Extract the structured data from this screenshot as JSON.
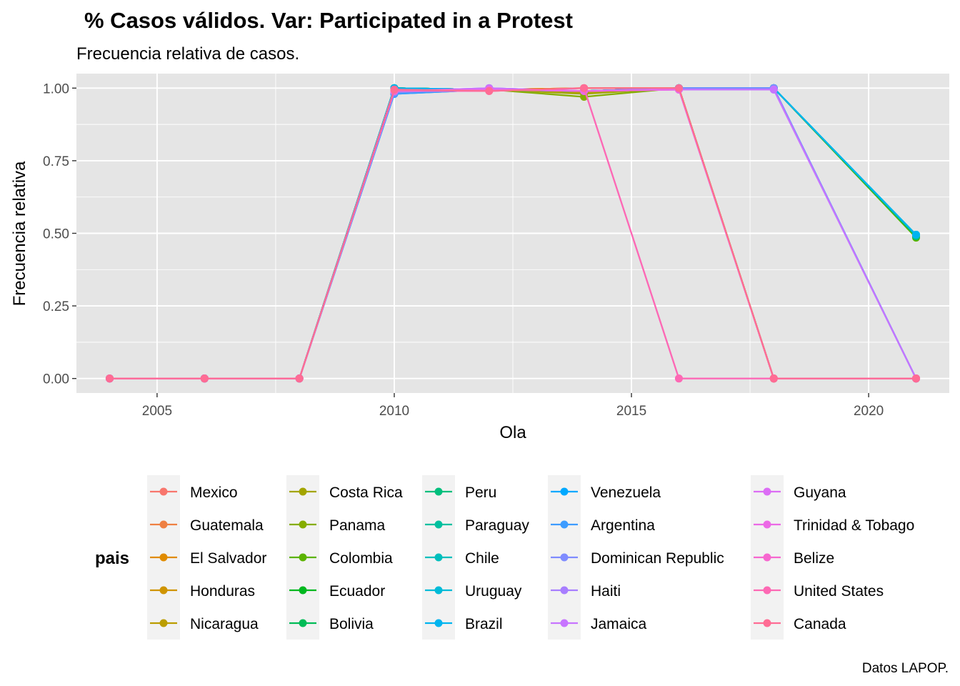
{
  "chart_data": {
    "type": "line",
    "title": "% Casos válidos. Var: Participated in a Protest",
    "subtitle": "Frecuencia relativa de casos.",
    "xlabel": "Ola",
    "ylabel": "Frecuencia relativa",
    "caption": "Datos LAPOP.",
    "legend_title": "pais",
    "legend_position": "bottom",
    "grid": true,
    "panel_background": "#e5e5e5",
    "xlim": [
      2003.3,
      2021.7
    ],
    "ylim": [
      -0.05,
      1.05
    ],
    "x_ticks": [
      2005,
      2010,
      2015,
      2020
    ],
    "x_tick_labels": [
      "2005",
      "2010",
      "2015",
      "2020"
    ],
    "y_ticks": [
      0,
      0.25,
      0.5,
      0.75,
      1
    ],
    "y_tick_labels": [
      "0.00",
      "0.25",
      "0.50",
      "0.75",
      "1.00"
    ],
    "x": [
      2004,
      2006,
      2008,
      2010,
      2012,
      2014,
      2016,
      2018,
      2021
    ],
    "series": [
      {
        "name": "Mexico",
        "color": "#F8766D",
        "values": [
          0,
          0,
          0,
          1.0,
          0.995,
          1.0,
          1.0,
          0,
          0
        ]
      },
      {
        "name": "Guatemala",
        "color": "#EE8043",
        "values": [
          0,
          0,
          0,
          1.0,
          0.995,
          1.0,
          1.0,
          0,
          0
        ]
      },
      {
        "name": "El Salvador",
        "color": "#E08B00",
        "values": [
          0,
          0,
          0,
          1.0,
          0.995,
          1.0,
          1.0,
          0,
          0
        ]
      },
      {
        "name": "Honduras",
        "color": "#CF9400",
        "values": [
          0,
          0,
          0,
          1.0,
          0.995,
          0.99,
          1.0,
          0,
          0
        ]
      },
      {
        "name": "Nicaragua",
        "color": "#BB9D00",
        "values": [
          0,
          0,
          0,
          1.0,
          0.995,
          0.985,
          1.0,
          0,
          0
        ]
      },
      {
        "name": "Costa Rica",
        "color": "#A3A500",
        "values": [
          0,
          0,
          0,
          1.0,
          0.995,
          0.98,
          1.0,
          0,
          0
        ]
      },
      {
        "name": "Panama",
        "color": "#85AD00",
        "values": [
          0,
          0,
          0,
          1.0,
          0.995,
          0.97,
          1.0,
          0,
          0
        ]
      },
      {
        "name": "Colombia",
        "color": "#5BB300",
        "values": [
          0,
          0,
          0,
          1.0,
          0.995,
          0.99,
          1.0,
          1.0,
          0.485
        ]
      },
      {
        "name": "Ecuador",
        "color": "#00B81F",
        "values": [
          0,
          0,
          0,
          1.0,
          0.995,
          0.99,
          1.0,
          1.0,
          0.49
        ]
      },
      {
        "name": "Bolivia",
        "color": "#00BC56",
        "values": [
          0,
          0,
          0,
          1.0,
          0.995,
          0.99,
          1.0,
          1.0,
          0.49
        ]
      },
      {
        "name": "Peru",
        "color": "#00BF7D",
        "values": [
          0,
          0,
          0,
          1.0,
          0.995,
          0.99,
          1.0,
          1.0,
          0.49
        ]
      },
      {
        "name": "Paraguay",
        "color": "#00C09F",
        "values": [
          0,
          0,
          0,
          1.0,
          0.995,
          0.99,
          1.0,
          1.0,
          0.495
        ]
      },
      {
        "name": "Chile",
        "color": "#00BFBD",
        "values": [
          0,
          0,
          0,
          1.0,
          0.995,
          0.99,
          1.0,
          1.0,
          0.495
        ]
      },
      {
        "name": "Uruguay",
        "color": "#00BBD8",
        "values": [
          0,
          0,
          0,
          1.0,
          0.995,
          0.99,
          1.0,
          1.0,
          0.495
        ]
      },
      {
        "name": "Brazil",
        "color": "#00B4EF",
        "values": [
          0,
          0,
          0,
          1.0,
          0.995,
          0.99,
          1.0,
          1.0,
          0.495
        ]
      },
      {
        "name": "Venezuela",
        "color": "#00A9FF",
        "values": [
          0,
          0,
          0,
          0.98,
          0.995,
          0.99,
          1.0,
          1.0,
          0
        ]
      },
      {
        "name": "Argentina",
        "color": "#3D9CFF",
        "values": [
          0,
          0,
          0,
          0.98,
          0.995,
          0.99,
          1.0,
          1.0,
          0
        ]
      },
      {
        "name": "Dominican Republic",
        "color": "#7F8CFF",
        "values": [
          0,
          0,
          0,
          0.985,
          1.0,
          0.99,
          1.0,
          1.0,
          0
        ]
      },
      {
        "name": "Haiti",
        "color": "#A87EFF",
        "values": [
          0,
          0,
          0,
          0.99,
          1.0,
          0.99,
          0.995,
          0.995,
          0
        ]
      },
      {
        "name": "Jamaica",
        "color": "#C774FF",
        "values": [
          0,
          0,
          0,
          0.99,
          1.0,
          0.99,
          0.995,
          0.995,
          0
        ]
      },
      {
        "name": "Guyana",
        "color": "#DC6DF5",
        "values": [
          0,
          0,
          0,
          0.99,
          0.995,
          0.99,
          0.995,
          0,
          0
        ]
      },
      {
        "name": "Trinidad & Tobago",
        "color": "#EC69E6",
        "values": [
          0,
          0,
          0,
          0.99,
          0.995,
          0.99,
          0.995,
          0,
          0
        ]
      },
      {
        "name": "Belize",
        "color": "#F767CF",
        "values": [
          0,
          0,
          0,
          0.99,
          0.99,
          1.0,
          0,
          0,
          0
        ]
      },
      {
        "name": "United States",
        "color": "#FD69B4",
        "values": [
          0,
          0,
          0,
          0.995,
          0.99,
          1.0,
          0,
          0,
          0
        ]
      },
      {
        "name": "Canada",
        "color": "#FF6C94",
        "values": [
          0,
          0,
          0,
          0.995,
          0.99,
          1.0,
          1.0,
          0,
          0
        ]
      }
    ]
  }
}
